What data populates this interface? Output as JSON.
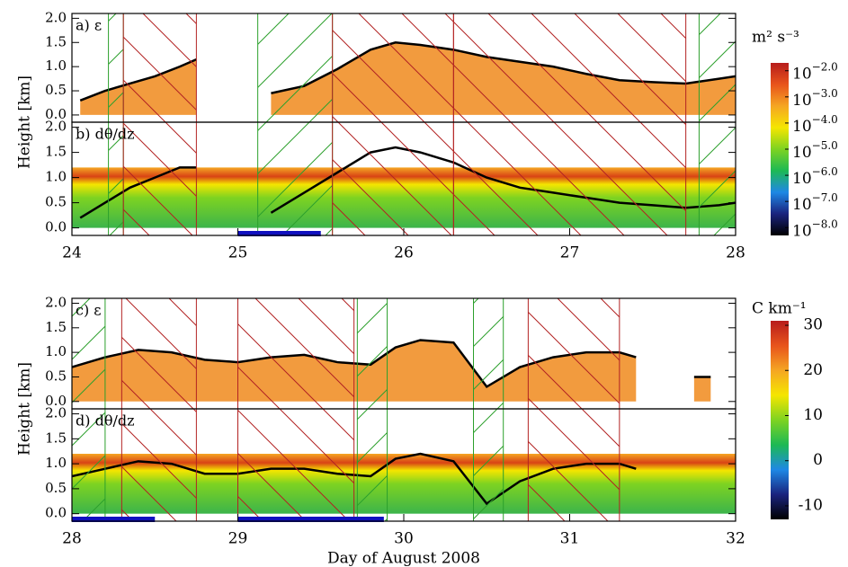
{
  "chart_data": [
    {
      "type": "eps",
      "title": "a) ε",
      "ylabel": "Height [km]",
      "xlim": [
        24,
        28
      ],
      "ylim": [
        -0.15,
        2.1
      ],
      "yticks": [
        {
          "value": 0,
          "label": "0.0"
        },
        {
          "value": 0.5,
          "label": "0.5"
        },
        {
          "value": 1,
          "label": "1.0"
        },
        {
          "value": 1.5,
          "label": "1.5"
        },
        {
          "value": 2,
          "label": "2.0"
        }
      ],
      "series": [
        {
          "color": "#000000",
          "fill": "#f08a1c",
          "x": [
            24.05,
            24.2,
            24.35,
            24.5,
            24.65,
            24.75,
            24.85,
            25.0,
            25.2,
            25.4,
            25.6,
            25.8,
            25.95,
            26.1,
            26.3,
            26.5,
            26.7,
            26.9,
            27.1,
            27.3,
            27.5,
            27.7,
            27.9,
            28.0
          ],
          "values": [
            0.3,
            0.5,
            0.65,
            0.8,
            1.0,
            1.15,
            null,
            null,
            0.45,
            0.6,
            0.95,
            1.35,
            1.5,
            1.45,
            1.35,
            1.2,
            1.1,
            1.0,
            0.85,
            0.72,
            0.68,
            0.65,
            0.75,
            0.8
          ]
        }
      ],
      "regions": [
        {
          "x": [
            24.22,
            24.31
          ],
          "color": "#2ca02c",
          "hatch": "/"
        },
        {
          "x": [
            24.31,
            24.75
          ],
          "color": "#b22222",
          "hatch": "\\"
        },
        {
          "x": [
            25.12,
            25.57
          ],
          "color": "#2ca02c",
          "hatch": "/"
        },
        {
          "x": [
            25.57,
            26.3
          ],
          "color": "#b22222",
          "hatch": "\\"
        },
        {
          "x": [
            26.3,
            27.7
          ],
          "color": "#b22222",
          "hatch": "\\"
        },
        {
          "x": [
            27.78,
            28.0
          ],
          "color": "#2ca02c",
          "hatch": "/"
        }
      ]
    },
    {
      "type": "grad",
      "title": "b) dθ/dz",
      "xlim": [
        24,
        28
      ],
      "ylim": [
        -0.15,
        2.1
      ],
      "field_top": 1.2,
      "yticks": [
        {
          "value": 0,
          "label": "0.0"
        },
        {
          "value": 0.5,
          "label": "0.5"
        },
        {
          "value": 1,
          "label": "1.0"
        },
        {
          "value": 1.5,
          "label": "1.5"
        },
        {
          "value": 2,
          "label": "2.0"
        }
      ],
      "xticks": [
        24,
        25,
        26,
        27,
        28
      ],
      "series": [
        {
          "color": "#000000",
          "x": [
            24.05,
            24.2,
            24.35,
            24.5,
            24.65,
            24.75,
            24.85,
            25.0,
            25.2,
            25.4,
            25.6,
            25.8,
            25.95,
            26.1,
            26.3,
            26.5,
            26.7,
            26.9,
            27.1,
            27.3,
            27.5,
            27.7,
            27.9,
            28.0
          ],
          "values": [
            0.2,
            0.5,
            0.8,
            1.0,
            1.2,
            1.2,
            null,
            null,
            0.3,
            0.7,
            1.1,
            1.5,
            1.6,
            1.5,
            1.3,
            1.0,
            0.8,
            0.7,
            0.6,
            0.5,
            0.45,
            0.4,
            0.45,
            0.5
          ]
        }
      ],
      "regions": [
        {
          "x": [
            24.22,
            24.31
          ],
          "color": "#2ca02c",
          "hatch": "/"
        },
        {
          "x": [
            24.31,
            24.75
          ],
          "color": "#b22222",
          "hatch": "\\"
        },
        {
          "x": [
            25.12,
            25.57
          ],
          "color": "#2ca02c",
          "hatch": "/"
        },
        {
          "x": [
            25.57,
            26.3
          ],
          "color": "#b22222",
          "hatch": "\\"
        },
        {
          "x": [
            26.3,
            27.7
          ],
          "color": "#b22222",
          "hatch": "\\"
        },
        {
          "x": [
            27.78,
            28.0
          ],
          "color": "#2ca02c",
          "hatch": "/"
        }
      ],
      "bars": [
        {
          "x": [
            25.0,
            25.5
          ],
          "color": "#1010c0"
        }
      ]
    },
    {
      "type": "eps",
      "title": "c) ε",
      "ylabel": "Height [km]",
      "xlim": [
        28,
        32
      ],
      "ylim": [
        -0.15,
        2.1
      ],
      "yticks": [
        {
          "value": 0,
          "label": "0.0"
        },
        {
          "value": 0.5,
          "label": "0.5"
        },
        {
          "value": 1,
          "label": "1.0"
        },
        {
          "value": 1.5,
          "label": "1.5"
        },
        {
          "value": 2,
          "label": "2.0"
        }
      ],
      "series": [
        {
          "color": "#000000",
          "fill": "#f08a1c",
          "x": [
            28.0,
            28.2,
            28.4,
            28.6,
            28.8,
            29.0,
            29.2,
            29.4,
            29.6,
            29.8,
            29.95,
            30.1,
            30.3,
            30.5,
            30.7,
            30.9,
            31.1,
            31.3,
            31.4,
            31.5,
            31.6,
            31.75,
            31.85
          ],
          "values": [
            0.7,
            0.9,
            1.05,
            1.0,
            0.85,
            0.8,
            0.9,
            0.95,
            0.8,
            0.75,
            1.1,
            1.25,
            1.2,
            0.3,
            0.7,
            0.9,
            1.0,
            1.0,
            0.9,
            null,
            null,
            0.5,
            0.5
          ]
        }
      ],
      "regions": [
        {
          "x": [
            28.0,
            28.2
          ],
          "color": "#2ca02c",
          "hatch": "/"
        },
        {
          "x": [
            28.3,
            28.75
          ],
          "color": "#b22222",
          "hatch": "\\"
        },
        {
          "x": [
            29.0,
            29.7
          ],
          "color": "#b22222",
          "hatch": "\\"
        },
        {
          "x": [
            29.72,
            29.9
          ],
          "color": "#2ca02c",
          "hatch": "/"
        },
        {
          "x": [
            30.42,
            30.6
          ],
          "color": "#2ca02c",
          "hatch": "/"
        },
        {
          "x": [
            30.75,
            31.3
          ],
          "color": "#b22222",
          "hatch": "\\"
        }
      ]
    },
    {
      "type": "grad",
      "title": "d) dθ/dz",
      "xlabel": "Day of August 2008",
      "xlim": [
        28,
        32
      ],
      "ylim": [
        -0.15,
        2.1
      ],
      "field_top": 1.2,
      "yticks": [
        {
          "value": 0,
          "label": "0.0"
        },
        {
          "value": 0.5,
          "label": "0.5"
        },
        {
          "value": 1,
          "label": "1.0"
        },
        {
          "value": 1.5,
          "label": "1.5"
        },
        {
          "value": 2,
          "label": "2.0"
        }
      ],
      "xticks": [
        28,
        29,
        30,
        31,
        32
      ],
      "series": [
        {
          "color": "#000000",
          "x": [
            28.0,
            28.2,
            28.4,
            28.6,
            28.8,
            29.0,
            29.2,
            29.4,
            29.6,
            29.8,
            29.95,
            30.1,
            30.3,
            30.5,
            30.7,
            30.9,
            31.1,
            31.3,
            31.4
          ],
          "values": [
            0.75,
            0.9,
            1.05,
            1.0,
            0.8,
            0.8,
            0.9,
            0.9,
            0.8,
            0.75,
            1.1,
            1.2,
            1.05,
            0.2,
            0.65,
            0.9,
            1.0,
            1.0,
            0.9
          ]
        }
      ],
      "regions": [
        {
          "x": [
            28.0,
            28.2
          ],
          "color": "#2ca02c",
          "hatch": "/"
        },
        {
          "x": [
            28.3,
            28.75
          ],
          "color": "#b22222",
          "hatch": "\\"
        },
        {
          "x": [
            29.0,
            29.7
          ],
          "color": "#b22222",
          "hatch": "\\"
        },
        {
          "x": [
            29.72,
            29.9
          ],
          "color": "#2ca02c",
          "hatch": "/"
        },
        {
          "x": [
            30.42,
            30.6
          ],
          "color": "#2ca02c",
          "hatch": "/"
        },
        {
          "x": [
            30.75,
            31.3
          ],
          "color": "#b22222",
          "hatch": "\\"
        }
      ],
      "bars": [
        {
          "x": [
            28.0,
            28.5
          ],
          "color": "#1010c0"
        },
        {
          "x": [
            29.0,
            29.88
          ],
          "color": "#1010c0"
        }
      ]
    },
    {
      "type": "colorbar",
      "title": "m² s⁻³",
      "lim": [
        -8.3,
        -1.7
      ],
      "colors": [
        "#000000",
        "#1a237e",
        "#1e88e5",
        "#1db954",
        "#7ed321",
        "#f5e600",
        "#f5a623",
        "#e8541c",
        "#b71c1c"
      ],
      "ticks": [
        {
          "value": -2,
          "label": "10",
          "exponent": "−2.0"
        },
        {
          "value": -3,
          "label": "10",
          "exponent": "−3.0"
        },
        {
          "value": -4,
          "label": "10",
          "exponent": "−4.0"
        },
        {
          "value": -5,
          "label": "10",
          "exponent": "−5.0"
        },
        {
          "value": -6,
          "label": "10",
          "exponent": "−6.0"
        },
        {
          "value": -7,
          "label": "10",
          "exponent": "−7.0"
        },
        {
          "value": -8,
          "label": "10",
          "exponent": "−8.0"
        }
      ]
    },
    {
      "type": "colorbar",
      "title": "C km⁻¹",
      "lim": [
        -13,
        31
      ],
      "colors": [
        "#000000",
        "#1a237e",
        "#1e88e5",
        "#1db954",
        "#7ed321",
        "#f5e600",
        "#f5a623",
        "#e8541c",
        "#b71c1c"
      ],
      "ticks": [
        30,
        20,
        10,
        0,
        -10
      ]
    }
  ]
}
